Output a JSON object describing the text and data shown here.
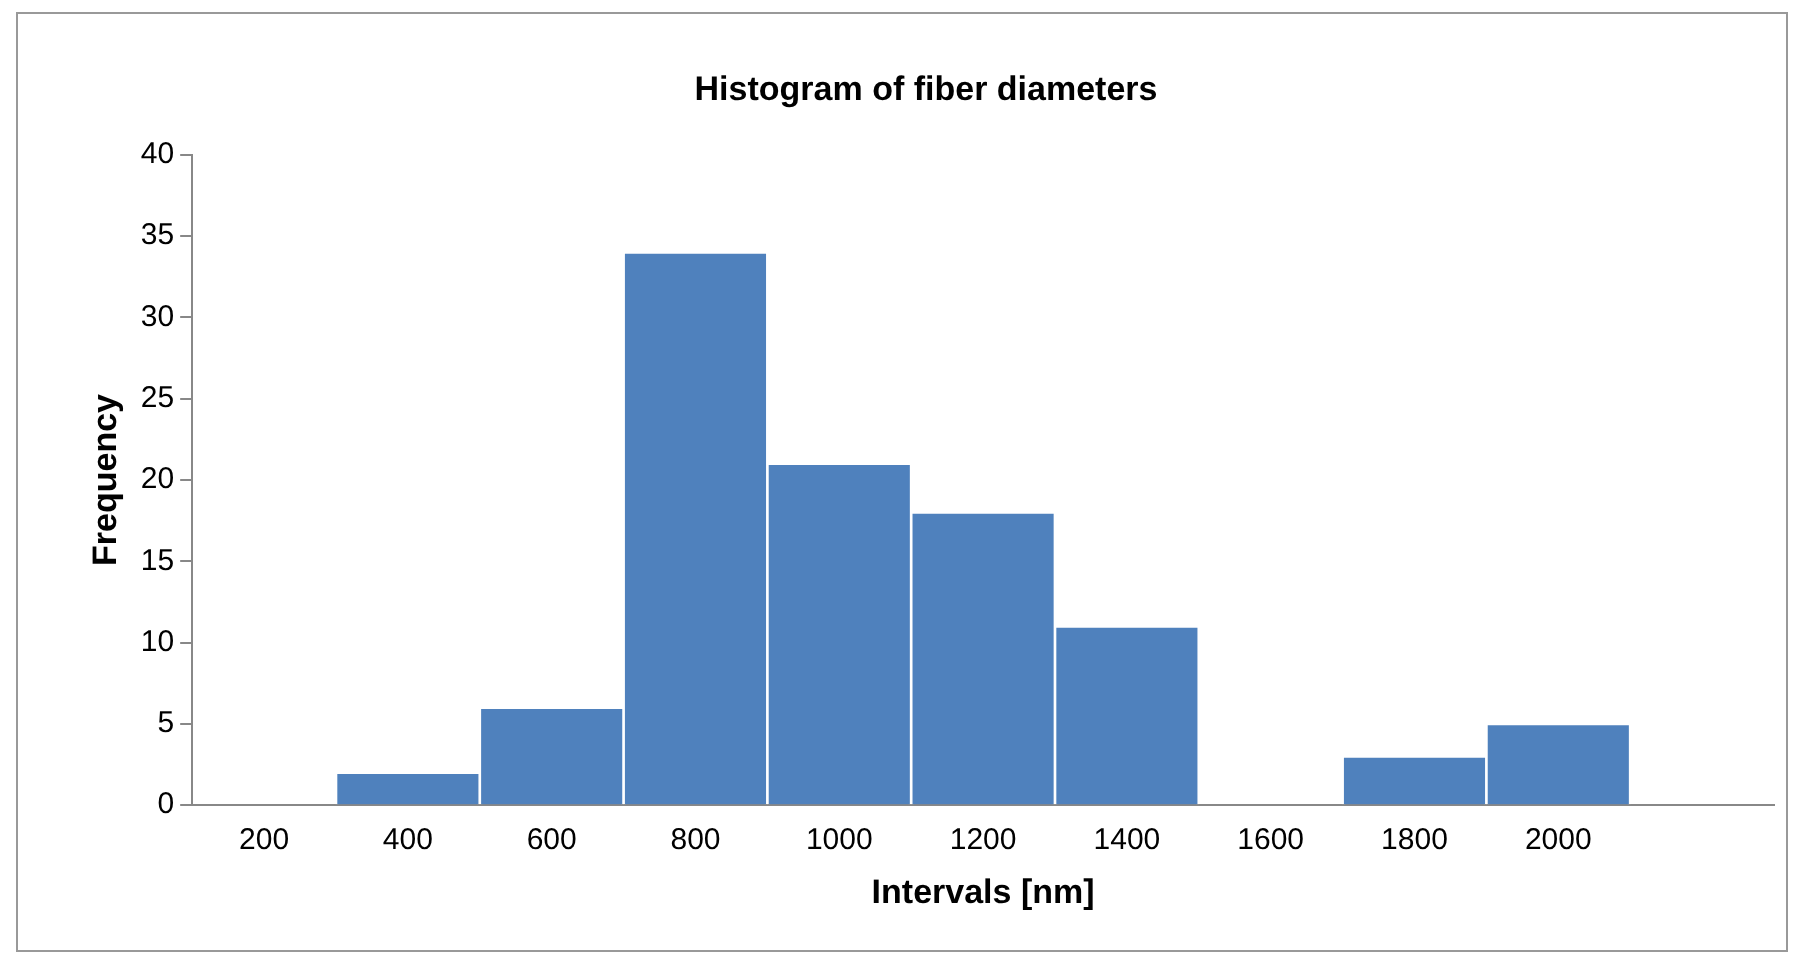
{
  "chart_data": {
    "type": "bar",
    "title": "Histogram of fiber diameters",
    "xlabel": "Intervals [nm]",
    "ylabel": "Frequency",
    "categories": [
      "200",
      "400",
      "600",
      "800",
      "1000",
      "1200",
      "1400",
      "1600",
      "1800",
      "2000",
      null
    ],
    "values": [
      0,
      2,
      6,
      34,
      21,
      18,
      11,
      0,
      3,
      5,
      0
    ],
    "color": "#4f81bd",
    "ylim": [
      0,
      40
    ],
    "yticks": [
      0,
      5,
      10,
      15,
      20,
      25,
      30,
      35,
      40
    ],
    "grid": false,
    "legend": false
  }
}
